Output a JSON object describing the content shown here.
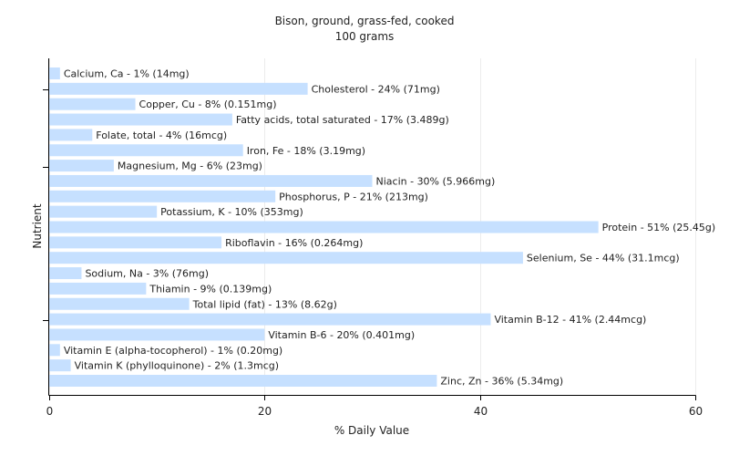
{
  "chart_data": {
    "type": "bar",
    "orientation": "horizontal",
    "title": "Bison, ground, grass-fed, cooked",
    "subtitle": "100 grams",
    "xlabel": "% Daily Value",
    "ylabel": "Nutrient",
    "xlim": [
      0,
      60
    ],
    "xticks": [
      "0",
      "20",
      "40",
      "60"
    ],
    "grid": true,
    "bar_color": "#c6e0ff",
    "categories": [
      "Calcium, Ca",
      "Cholesterol",
      "Copper, Cu",
      "Fatty acids, total saturated",
      "Folate, total",
      "Iron, Fe",
      "Magnesium, Mg",
      "Niacin",
      "Phosphorus, P",
      "Potassium, K",
      "Protein",
      "Riboflavin",
      "Selenium, Se",
      "Sodium, Na",
      "Thiamin",
      "Total lipid (fat)",
      "Vitamin B-12",
      "Vitamin B-6",
      "Vitamin E (alpha-tocopherol)",
      "Vitamin K (phylloquinone)",
      "Zinc, Zn"
    ],
    "values": [
      1,
      24,
      8,
      17,
      4,
      18,
      6,
      30,
      21,
      10,
      51,
      16,
      44,
      3,
      9,
      13,
      41,
      20,
      1,
      2,
      36
    ],
    "labels": [
      "Calcium, Ca - 1% (14mg)",
      "Cholesterol - 24% (71mg)",
      "Copper, Cu - 8% (0.151mg)",
      "Fatty acids, total saturated - 17% (3.489g)",
      "Folate, total - 4% (16mcg)",
      "Iron, Fe - 18% (3.19mg)",
      "Magnesium, Mg - 6% (23mg)",
      "Niacin - 30% (5.966mg)",
      "Phosphorus, P - 21% (213mg)",
      "Potassium, K - 10% (353mg)",
      "Protein - 51% (25.45g)",
      "Riboflavin - 16% (0.264mg)",
      "Selenium, Se - 44% (31.1mcg)",
      "Sodium, Na - 3% (76mg)",
      "Thiamin - 9% (0.139mg)",
      "Total lipid (fat) - 13% (8.62g)",
      "Vitamin B-12 - 41% (2.44mcg)",
      "Vitamin B-6 - 20% (0.401mg)",
      "Vitamin E (alpha-tocopherol) - 1% (0.20mg)",
      "Vitamin K (phylloquinone) - 2% (1.3mcg)",
      "Zinc, Zn - 36% (5.34mg)"
    ]
  }
}
